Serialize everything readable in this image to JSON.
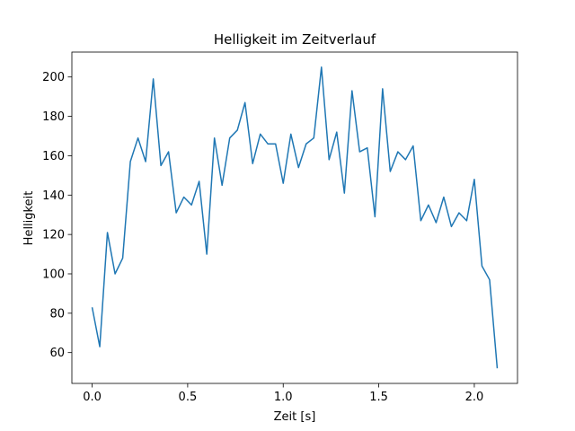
{
  "chart_data": {
    "type": "line",
    "title": "Helligkeit im Zeitverlauf",
    "xlabel": "Zeit [s]",
    "ylabel": "Helligkeit",
    "xlim": [
      -0.106,
      2.226
    ],
    "ylim": [
      44.35,
      212.65
    ],
    "xticks": [
      0.0,
      0.5,
      1.0,
      1.5,
      2.0
    ],
    "xtick_labels": [
      "0.0",
      "0.5",
      "1.0",
      "1.5",
      "2.0"
    ],
    "yticks": [
      60,
      80,
      100,
      120,
      140,
      160,
      180,
      200
    ],
    "ytick_labels": [
      "60",
      "80",
      "100",
      "120",
      "140",
      "160",
      "180",
      "200"
    ],
    "grid": false,
    "series": [
      {
        "color": "#1f77b4",
        "x": [
          0.0,
          0.04,
          0.08,
          0.12,
          0.16,
          0.2,
          0.24,
          0.28,
          0.32,
          0.36,
          0.4,
          0.44,
          0.48,
          0.52,
          0.56,
          0.6,
          0.64,
          0.68,
          0.72,
          0.76,
          0.8,
          0.84,
          0.88,
          0.92,
          0.96,
          1.0,
          1.04,
          1.08,
          1.12,
          1.16,
          1.2,
          1.24,
          1.28,
          1.32,
          1.36,
          1.4,
          1.44,
          1.48,
          1.52,
          1.56,
          1.6,
          1.64,
          1.68,
          1.72,
          1.76,
          1.8,
          1.84,
          1.88,
          1.92,
          1.96,
          2.0,
          2.04,
          2.08,
          2.12
        ],
        "y": [
          83,
          63,
          121,
          100,
          108,
          157,
          169,
          157,
          199,
          155,
          162,
          131,
          139,
          135,
          147,
          110,
          169,
          145,
          169,
          173,
          187,
          156,
          171,
          166,
          166,
          146,
          171,
          154,
          166,
          169,
          205,
          158,
          172,
          141,
          193,
          162,
          164,
          129,
          194,
          152,
          162,
          158,
          165,
          127,
          135,
          126,
          139,
          124,
          131,
          127,
          148,
          104,
          97,
          52
        ]
      }
    ]
  }
}
